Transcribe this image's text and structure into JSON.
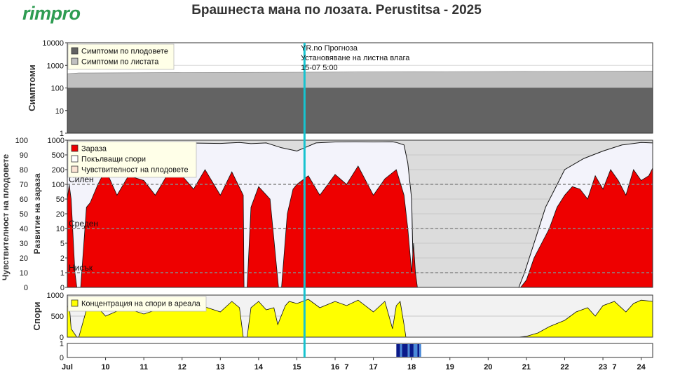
{
  "header": {
    "logo": "rimpro",
    "title": "Брашнеста мана по лозата.  Perustitsa - 2025"
  },
  "colors": {
    "fruit_symptoms": "#636363",
    "leaf_symptoms": "#c0c0c0",
    "infection": "#ee0000",
    "spores_released": "#f3f3fb",
    "fruit_sensitivity": "#fbe3d3",
    "spore_concentration": "#ffff00",
    "cursor": "#17c3cf",
    "wetness_dark": "#0a1a8a",
    "wetness_light": "#4a8ad8"
  },
  "forecast_note": {
    "line1": "YR.no Прогноза",
    "line2": "Установяване на листна влага",
    "line3": "15-07 5:00"
  },
  "chart_data": [
    {
      "type": "area",
      "panel": "symptoms",
      "ylabel": "Симптоми",
      "yscale": "log",
      "ylim": [
        1,
        10000
      ],
      "yticks": [
        "1",
        "10",
        "100",
        "1000",
        "10000"
      ],
      "legend": [
        "Симптоми по плодовете",
        "Симптоми по листата"
      ],
      "series": [
        {
          "name": "Симптоми по плодовете",
          "x": [
            9.0,
            24.3
          ],
          "values": [
            100,
            100
          ]
        },
        {
          "name": "Симптоми по листата",
          "x": [
            9.0,
            9.3,
            12.0,
            15.0,
            18.0,
            21.0,
            24.3
          ],
          "values": [
            430,
            460,
            480,
            500,
            520,
            540,
            560
          ]
        }
      ]
    },
    {
      "type": "area",
      "panel": "infection",
      "ylabel_left": "Чувствителност на плодовете",
      "ylabel_right": "Развитие на зараза",
      "yticks_left": [
        "0",
        "10",
        "20",
        "30",
        "40",
        "50",
        "60",
        "70",
        "80",
        "90",
        "100"
      ],
      "yticks_right": [
        "0",
        "1",
        "2",
        "5",
        "10",
        "20",
        "50",
        "100",
        "200",
        "500",
        "1000"
      ],
      "levels": [
        {
          "label": "Силен",
          "value": 100
        },
        {
          "label": "Среден",
          "value": 10
        },
        {
          "label": "Нисък",
          "value": 1
        }
      ],
      "legend": [
        "Зараза",
        "Покълващи спори",
        "Чувствителност на плодовете"
      ],
      "series": [
        {
          "name": "Покълващи спори",
          "x": [
            9.0,
            9.1,
            9.3,
            9.6,
            10.0,
            10.5,
            11.0,
            11.5,
            12.0,
            12.5,
            13.0,
            13.5,
            13.8,
            14.2,
            14.6,
            15.0,
            15.5,
            16.0,
            16.5,
            17.0,
            17.5,
            17.6,
            17.8,
            17.9,
            18.0,
            18.05,
            18.2,
            18.5,
            19.0,
            20.0,
            20.8,
            20.95,
            21.2,
            21.5,
            22.0,
            22.5,
            23.0,
            23.5,
            24.0,
            24.3
          ],
          "values": [
            900,
            850,
            700,
            600,
            850,
            900,
            870,
            890,
            880,
            870,
            860,
            900,
            850,
            880,
            700,
            600,
            880,
            920,
            930,
            920,
            930,
            900,
            800,
            300,
            50,
            0,
            0,
            0,
            0,
            0,
            0,
            1,
            5,
            30,
            200,
            400,
            600,
            800,
            900,
            880
          ]
        },
        {
          "name": "Зараза",
          "x": [
            9.0,
            9.05,
            9.1,
            9.2,
            9.25,
            9.35,
            9.5,
            9.6,
            9.8,
            10.0,
            10.3,
            10.6,
            11.0,
            11.3,
            11.6,
            12.0,
            12.3,
            12.6,
            13.0,
            13.3,
            13.6,
            13.62,
            13.7,
            13.8,
            14.0,
            14.3,
            14.52,
            14.6,
            14.75,
            14.9,
            15.0,
            15.3,
            15.6,
            16.0,
            16.3,
            16.6,
            17.0,
            17.3,
            17.6,
            17.8,
            17.9,
            18.0,
            18.05,
            18.1,
            18.15,
            18.2,
            20.85,
            21.0,
            21.2,
            21.4,
            21.6,
            21.8,
            22.0,
            22.2,
            22.4,
            22.6,
            22.8,
            23.0,
            23.2,
            23.4,
            23.6,
            23.8,
            24.0,
            24.2,
            24.3
          ],
          "values": [
            50,
            100,
            50,
            1,
            0,
            0,
            30,
            40,
            100,
            200,
            60,
            150,
            120,
            60,
            150,
            150,
            80,
            200,
            60,
            180,
            60,
            0,
            0,
            30,
            90,
            50,
            0,
            0,
            20,
            80,
            100,
            150,
            60,
            160,
            100,
            250,
            60,
            130,
            200,
            60,
            10,
            1,
            5,
            1,
            0,
            0,
            0,
            0.5,
            2,
            5,
            10,
            30,
            60,
            90,
            80,
            50,
            150,
            80,
            200,
            120,
            60,
            200,
            120,
            150,
            220
          ]
        }
      ]
    },
    {
      "type": "area",
      "panel": "spores",
      "ylabel": "Спори",
      "ylim": [
        0,
        1000
      ],
      "yticks": [
        "0",
        "500",
        "1000"
      ],
      "legend": [
        "Концентрация на спори в ареала"
      ],
      "series": [
        {
          "name": "Концентрация на спори в ареала",
          "x": [
            9.0,
            9.05,
            9.1,
            9.25,
            9.3,
            9.5,
            9.6,
            9.8,
            10.0,
            10.5,
            11.0,
            11.5,
            12.0,
            12.5,
            13.0,
            13.3,
            13.5,
            13.6,
            13.7,
            13.8,
            14.0,
            14.2,
            14.4,
            14.5,
            14.7,
            14.8,
            15.0,
            15.3,
            15.6,
            16.0,
            16.3,
            16.6,
            17.0,
            17.3,
            17.5,
            17.6,
            17.7,
            17.8,
            17.85,
            20.8,
            21.0,
            21.3,
            21.6,
            22.0,
            22.3,
            22.6,
            22.8,
            23.0,
            23.3,
            23.6,
            23.8,
            24.0,
            24.3
          ],
          "values": [
            700,
            800,
            200,
            0,
            0,
            650,
            800,
            700,
            500,
            700,
            550,
            700,
            650,
            750,
            600,
            850,
            700,
            0,
            0,
            700,
            850,
            650,
            700,
            300,
            750,
            850,
            800,
            900,
            700,
            850,
            750,
            880,
            600,
            850,
            200,
            750,
            850,
            300,
            0,
            0,
            20,
            100,
            250,
            400,
            600,
            700,
            500,
            750,
            850,
            600,
            800,
            880,
            850
          ]
        }
      ]
    },
    {
      "type": "bar",
      "panel": "leaf-wetness",
      "yticks": [
        "0",
        "1"
      ],
      "xlim": [
        9.0,
        24.3
      ],
      "x_tick_labels": [
        "Jul",
        "10",
        "11",
        "12",
        "13",
        "14",
        "15",
        "16",
        "17",
        "18",
        "19",
        "20",
        "21",
        "22",
        "23",
        "24"
      ],
      "x_secondary_labels": [
        {
          "label": "7",
          "at": 16.3
        },
        {
          "label": "7",
          "at": 23.3
        }
      ],
      "segments": [
        {
          "start": 17.6,
          "end": 17.7,
          "level": "dark"
        },
        {
          "start": 17.7,
          "end": 17.75,
          "level": "light"
        },
        {
          "start": 17.75,
          "end": 17.9,
          "level": "dark"
        },
        {
          "start": 17.9,
          "end": 17.95,
          "level": "light"
        },
        {
          "start": 17.95,
          "end": 18.05,
          "level": "dark"
        },
        {
          "start": 18.05,
          "end": 18.15,
          "level": "light"
        },
        {
          "start": 18.15,
          "end": 18.2,
          "level": "dark"
        },
        {
          "start": 18.2,
          "end": 18.25,
          "level": "light"
        }
      ],
      "cursor_x": 15.2
    }
  ]
}
